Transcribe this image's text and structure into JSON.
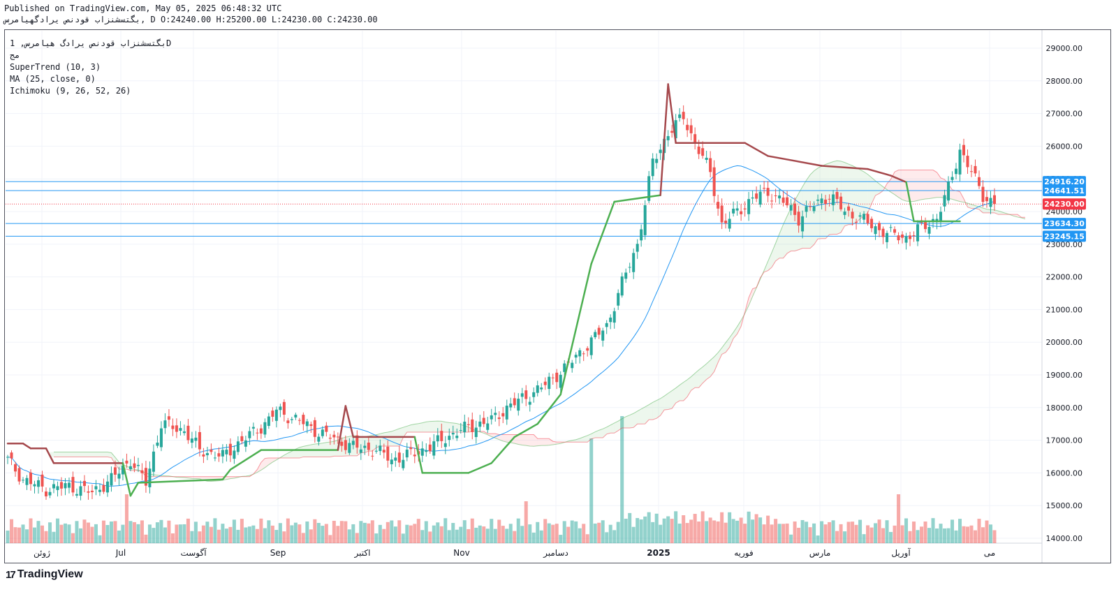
{
  "header": {
    "published": "Published on TradingView.com, May 05, 2025 06:48:32 UTC",
    "ohlc_line": "بگتسشنزاب قودنص یرادگهیامرس, D O:24240.00 H:25200.00 L:24230.00 C:24230.00"
  },
  "legend": {
    "symbol": "بگتسشنزاب قودنص یرادگ هیامرس, 1D",
    "exchange": "مج",
    "ind1": "SuperTrend (10, 3)",
    "ind2": "MA (25, close, 0)",
    "ind3": "Ichimoku (9, 26, 52, 26)"
  },
  "footer": {
    "brand": "TradingView",
    "mark": "17"
  },
  "colors": {
    "up": "#26a69a",
    "down": "#ef5350",
    "supertrend_up": "#4caf50",
    "supertrend_down": "#a5484c",
    "ma": "#2196f3",
    "hline": "#2196f3",
    "last_price": "#f23645"
  },
  "chart_data": {
    "type": "candlestick",
    "ylim": [
      13800,
      29600
    ],
    "y_ticks": [
      "29000.00",
      "28000.00",
      "27000.00",
      "26000.00",
      "25000.00",
      "24000.00",
      "23000.00",
      "22000.00",
      "21000.00",
      "20000.00",
      "19000.00",
      "18000.00",
      "17000.00",
      "16000.00",
      "15000.00",
      "14000.00"
    ],
    "x_labels": [
      "ژوئن",
      "Jul",
      "آگوست",
      "Sep",
      "اکتبر",
      "Nov",
      "دسامبر",
      "2025",
      "فوریه",
      "مارس",
      "آوریل",
      "می"
    ],
    "price_labels": [
      {
        "value": 24916.2,
        "text": "24916.20",
        "color": "#2196f3"
      },
      {
        "value": 24641.51,
        "text": "24641.51",
        "color": "#2196f3"
      },
      {
        "value": 24230.0,
        "text": "24230.00",
        "color": "#f23645"
      },
      {
        "value": 23634.3,
        "text": "23634.30",
        "color": "#2196f3"
      },
      {
        "value": 23245.15,
        "text": "23245.15",
        "color": "#2196f3"
      }
    ],
    "hlines": [
      24916.2,
      24641.51,
      23634.3,
      23245.15
    ],
    "last_price": 24230.0,
    "anchors": [
      [
        0,
        16400
      ],
      [
        4,
        15800
      ],
      [
        10,
        15500
      ],
      [
        16,
        15600
      ],
      [
        22,
        15400
      ],
      [
        27,
        15800
      ],
      [
        32,
        16400
      ],
      [
        36,
        15700
      ],
      [
        40,
        17500
      ],
      [
        46,
        17300
      ],
      [
        50,
        16700
      ],
      [
        56,
        16500
      ],
      [
        60,
        16900
      ],
      [
        66,
        17400
      ],
      [
        70,
        17900
      ],
      [
        76,
        17600
      ],
      [
        80,
        17300
      ],
      [
        86,
        17000
      ],
      [
        90,
        16800
      ],
      [
        96,
        16700
      ],
      [
        100,
        16400
      ],
      [
        106,
        16600
      ],
      [
        110,
        16800
      ],
      [
        116,
        17200
      ],
      [
        120,
        17400
      ],
      [
        126,
        17600
      ],
      [
        130,
        18000
      ],
      [
        136,
        18400
      ],
      [
        140,
        18700
      ],
      [
        146,
        19300
      ],
      [
        150,
        19800
      ],
      [
        156,
        20500
      ],
      [
        160,
        21800
      ],
      [
        164,
        23000
      ],
      [
        168,
        25500
      ],
      [
        172,
        26400
      ],
      [
        176,
        26900
      ],
      [
        179,
        26100
      ],
      [
        183,
        25200
      ],
      [
        186,
        23600
      ],
      [
        190,
        24000
      ],
      [
        194,
        24400
      ],
      [
        198,
        24600
      ],
      [
        202,
        24300
      ],
      [
        206,
        23800
      ],
      [
        210,
        24200
      ],
      [
        214,
        24500
      ],
      [
        218,
        24000
      ],
      [
        222,
        23800
      ],
      [
        226,
        23500
      ],
      [
        230,
        23300
      ],
      [
        234,
        23200
      ],
      [
        238,
        23500
      ],
      [
        242,
        23800
      ],
      [
        245,
        24700
      ],
      [
        248,
        25900
      ],
      [
        251,
        25200
      ],
      [
        254,
        24500
      ],
      [
        257,
        24230
      ]
    ],
    "supertrend": [
      [
        0,
        16900,
        "r"
      ],
      [
        1,
        16900,
        "r"
      ],
      [
        2,
        16900,
        "r"
      ],
      [
        3,
        16900,
        "r"
      ],
      [
        4,
        16900,
        "r"
      ],
      [
        6,
        16750,
        "r"
      ],
      [
        10,
        16750,
        "r"
      ],
      [
        12,
        16300,
        "r"
      ],
      [
        30,
        16300,
        "r"
      ],
      [
        32,
        15300,
        "g"
      ],
      [
        34,
        15700,
        "g"
      ],
      [
        56,
        15800,
        "g"
      ],
      [
        58,
        16100,
        "g"
      ],
      [
        66,
        16700,
        "g"
      ],
      [
        86,
        16700,
        "g"
      ],
      [
        88,
        18050,
        "r"
      ],
      [
        90,
        17100,
        "r"
      ],
      [
        106,
        17100,
        "r"
      ],
      [
        108,
        16000,
        "g"
      ],
      [
        120,
        16000,
        "g"
      ],
      [
        126,
        16300,
        "g"
      ],
      [
        132,
        17100,
        "g"
      ],
      [
        138,
        17500,
        "g"
      ],
      [
        144,
        18400,
        "g"
      ],
      [
        148,
        20400,
        "g"
      ],
      [
        152,
        22400,
        "g"
      ],
      [
        158,
        24300,
        "g"
      ],
      [
        164,
        24400,
        "g"
      ],
      [
        170,
        24500,
        "g"
      ],
      [
        172,
        27900,
        "r"
      ],
      [
        174,
        26100,
        "r"
      ],
      [
        192,
        26100,
        "r"
      ],
      [
        198,
        25700,
        "r"
      ],
      [
        212,
        25400,
        "r"
      ],
      [
        224,
        25300,
        "r"
      ],
      [
        230,
        25100,
        "r"
      ],
      [
        234,
        24900,
        "r"
      ],
      [
        236,
        23700,
        "g"
      ],
      [
        248,
        23700,
        "g"
      ]
    ]
  }
}
